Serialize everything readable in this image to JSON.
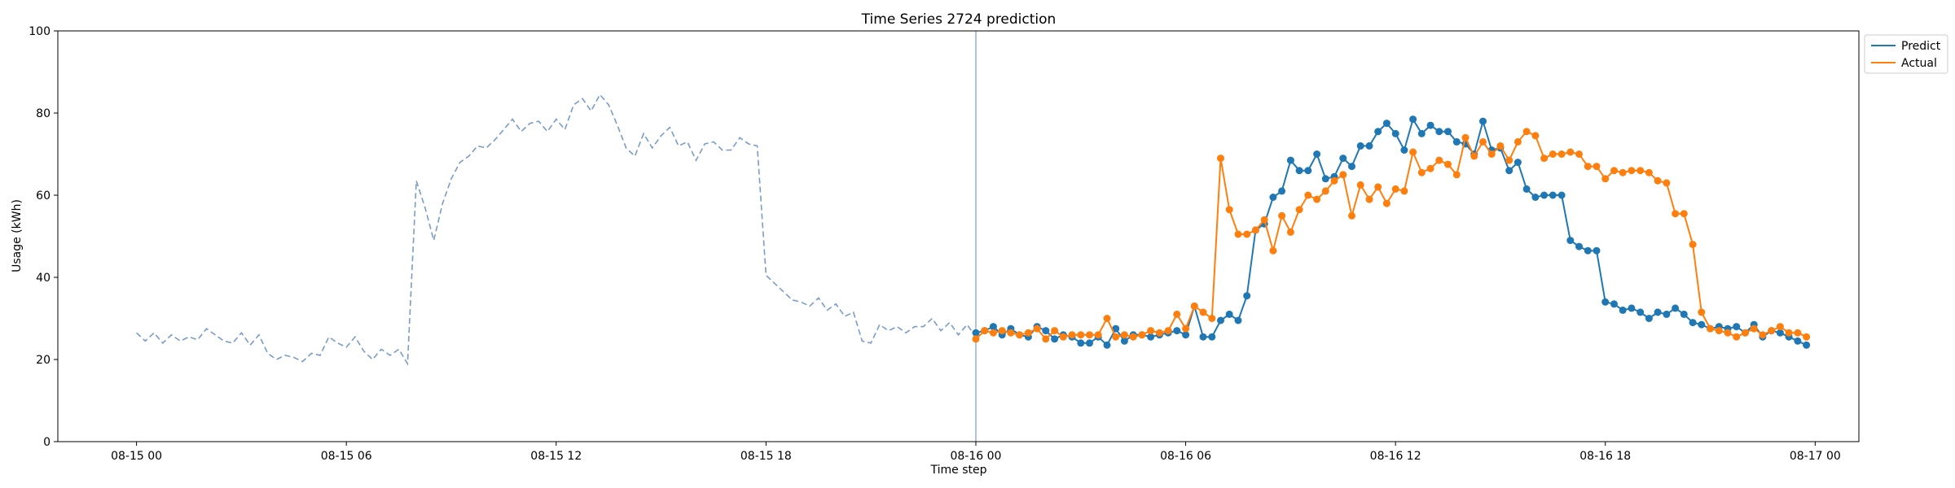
{
  "chart_data": {
    "type": "line",
    "title": "Time Series 2724 prediction",
    "xlabel": "Time step",
    "ylabel": "Usage (kWh)",
    "ylim": [
      0,
      100
    ],
    "yticks": [
      0,
      20,
      40,
      60,
      80,
      100
    ],
    "xlim": [
      "2024-08-14T21:45",
      "2024-08-17T01:15"
    ],
    "xticks": [
      {
        "t": "2024-08-15T00:00",
        "label": "08-15 00"
      },
      {
        "t": "2024-08-15T06:00",
        "label": "08-15 06"
      },
      {
        "t": "2024-08-15T12:00",
        "label": "08-15 12"
      },
      {
        "t": "2024-08-15T18:00",
        "label": "08-15 18"
      },
      {
        "t": "2024-08-16T00:00",
        "label": "08-16 00"
      },
      {
        "t": "2024-08-16T06:00",
        "label": "08-16 06"
      },
      {
        "t": "2024-08-16T12:00",
        "label": "08-16 12"
      },
      {
        "t": "2024-08-16T18:00",
        "label": "08-16 18"
      },
      {
        "t": "2024-08-17T00:00",
        "label": "08-17 00"
      }
    ],
    "forecast_start": "2024-08-16T00:00",
    "step_minutes": 15,
    "grid": false,
    "legend_position": "top-right",
    "colors": {
      "predict": "#1f77b4",
      "actual": "#ff7f0e",
      "history": "#7a9cc6",
      "divider": "#7a9cc6"
    },
    "history": {
      "start": "2024-08-15T00:00",
      "values": [
        26.5,
        24.5,
        26.5,
        24.0,
        26.0,
        24.5,
        25.5,
        24.8,
        27.5,
        26.0,
        24.5,
        24.0,
        26.5,
        23.5,
        26.0,
        21.5,
        20.0,
        21.0,
        20.5,
        19.5,
        21.5,
        21.0,
        25.5,
        24.0,
        23.0,
        25.5,
        22.0,
        20.0,
        22.5,
        21.0,
        22.5,
        19.0,
        63.5,
        57.0,
        49.0,
        58.0,
        64.0,
        68.0,
        69.5,
        72.0,
        71.5,
        73.5,
        76.0,
        78.5,
        75.5,
        77.5,
        78.0,
        75.5,
        78.5,
        76.0,
        82.0,
        83.5,
        80.5,
        84.5,
        82.0,
        77.0,
        71.5,
        69.5,
        75.0,
        71.5,
        74.5,
        76.5,
        72.0,
        73.0,
        68.5,
        72.5,
        73.0,
        71.0,
        71.0,
        74.0,
        72.5,
        72.0,
        40.5,
        38.5,
        36.5,
        34.5,
        34.0,
        33.0,
        35.0,
        32.0,
        33.5,
        30.5,
        31.5,
        24.5,
        24.0,
        28.5,
        27.0,
        28.0,
        26.5,
        28.0,
        28.0,
        30.0,
        27.0,
        29.0,
        26.0,
        28.5,
        25.5
      ]
    },
    "series": [
      {
        "name": "Predict",
        "start": "2024-08-16T00:00",
        "values": [
          26.5,
          27.0,
          28.0,
          26.0,
          27.5,
          26.0,
          25.5,
          28.0,
          27.0,
          25.0,
          26.0,
          25.5,
          24.0,
          24.0,
          25.5,
          23.5,
          27.5,
          24.5,
          26.0,
          26.0,
          25.5,
          26.0,
          26.5,
          27.0,
          26.0,
          33.0,
          25.5,
          25.5,
          29.5,
          31.0,
          29.5,
          35.5,
          51.5,
          53.0,
          59.5,
          61.0,
          68.5,
          66.0,
          66.0,
          70.0,
          64.0,
          64.5,
          69.0,
          67.0,
          72.0,
          72.0,
          75.5,
          77.5,
          75.0,
          71.0,
          78.5,
          75.0,
          77.0,
          75.5,
          75.5,
          73.0,
          72.5,
          70.0,
          78.0,
          71.0,
          71.5,
          66.0,
          68.0,
          61.5,
          59.5,
          60.0,
          60.0,
          60.0,
          49.0,
          47.5,
          46.5,
          46.5,
          34.0,
          33.5,
          32.0,
          32.5,
          31.5,
          30.0,
          31.5,
          31.0,
          32.5,
          31.0,
          29.0,
          28.5,
          27.5,
          28.0,
          27.5,
          28.0,
          26.5,
          28.5,
          25.5,
          27.0,
          26.5,
          25.5,
          24.5,
          23.5
        ]
      },
      {
        "name": "Actual",
        "start": "2024-08-16T00:00",
        "values": [
          25.0,
          27.0,
          26.5,
          27.0,
          26.5,
          26.0,
          26.5,
          27.5,
          25.0,
          27.0,
          25.5,
          26.0,
          26.0,
          26.0,
          26.0,
          30.0,
          25.5,
          26.0,
          25.5,
          26.0,
          27.0,
          26.5,
          27.0,
          31.0,
          27.5,
          33.0,
          31.5,
          30.0,
          69.0,
          56.5,
          50.5,
          50.5,
          51.5,
          54.0,
          46.5,
          55.0,
          51.0,
          56.5,
          60.0,
          59.0,
          61.0,
          63.5,
          65.0,
          55.0,
          62.5,
          59.0,
          62.0,
          58.0,
          61.5,
          61.0,
          70.5,
          65.5,
          66.5,
          68.5,
          67.5,
          65.0,
          74.0,
          69.5,
          73.0,
          70.0,
          72.0,
          68.5,
          73.0,
          75.5,
          74.5,
          69.0,
          70.0,
          70.0,
          70.5,
          70.0,
          67.0,
          67.0,
          64.0,
          66.0,
          65.5,
          66.0,
          66.0,
          65.5,
          63.5,
          63.0,
          55.5,
          55.5,
          48.0,
          31.5,
          27.5,
          27.0,
          26.5,
          25.5,
          26.5,
          27.5,
          26.0,
          27.0,
          28.0,
          26.5,
          26.5,
          25.5
        ]
      }
    ]
  },
  "labels": {
    "title": "Time Series 2724 prediction",
    "xlabel": "Time step",
    "ylabel": "Usage (kWh)",
    "legend_predict": "Predict",
    "legend_actual": "Actual"
  }
}
